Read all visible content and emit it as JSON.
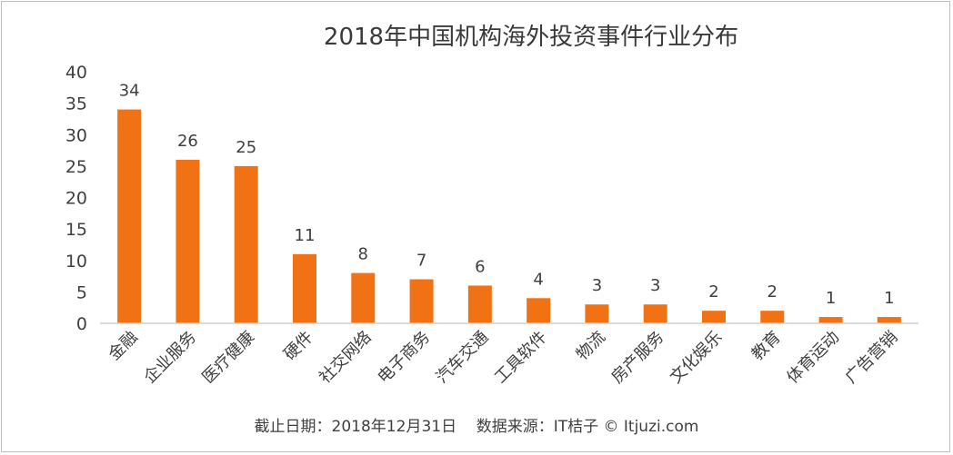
{
  "chart_data": {
    "type": "bar",
    "title": "2018年中国机构海外投资事件行业分布",
    "categories": [
      "金融",
      "企业服务",
      "医疗健康",
      "硬件",
      "社交网络",
      "电子商务",
      "汽车交通",
      "工具软件",
      "物流",
      "房产服务",
      "文化娱乐",
      "教育",
      "体育运动",
      "广告营销"
    ],
    "values": [
      34,
      26,
      25,
      11,
      8,
      7,
      6,
      4,
      3,
      3,
      2,
      2,
      1,
      1
    ],
    "yticks": [
      "0",
      "5",
      "10",
      "15",
      "20",
      "25",
      "30",
      "35",
      "40"
    ],
    "ylim": [
      0,
      40
    ],
    "xlabel": "",
    "ylabel": "",
    "grid": false,
    "legend": "none",
    "bar_color": "#f07214"
  },
  "footer": {
    "date_note": "截止日期：2018年12月31日",
    "source_note": "数据来源：IT桔子 © Itjuzi.com"
  }
}
